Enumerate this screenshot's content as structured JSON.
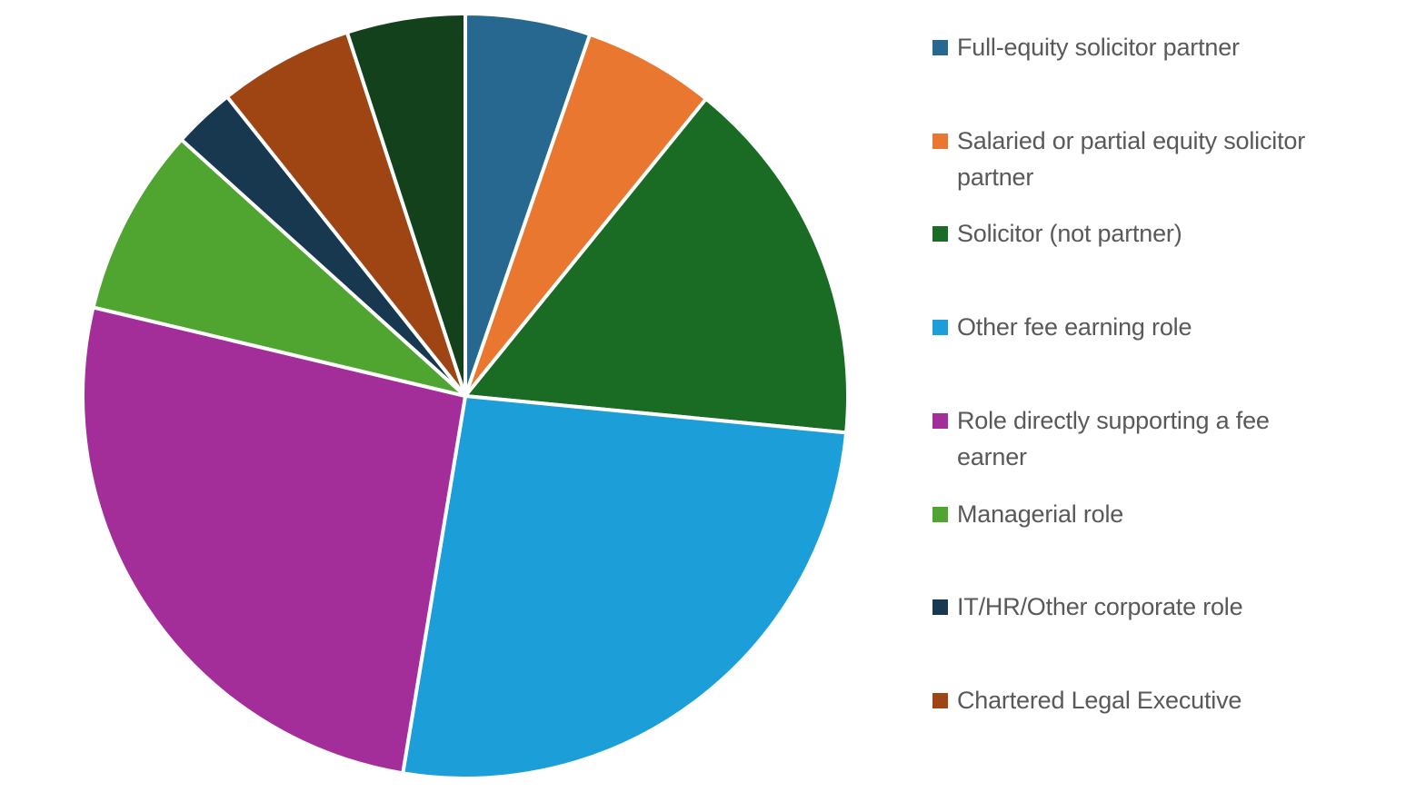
{
  "chart_data": {
    "type": "pie",
    "title": "",
    "legend_position": "right",
    "background": "#FFFFFF",
    "legend_text_color": "#595959",
    "slice_border_color": "#FFFFFF",
    "slices": [
      {
        "label": "Full-equity solicitor partner",
        "color": "#26688F",
        "start_deg": 0,
        "end_deg": 19,
        "percent_est": 5.3,
        "legend_visible": true
      },
      {
        "label": "Salaried or partial equity solicitor partner",
        "color": "#E9772F",
        "start_deg": 19,
        "end_deg": 39,
        "percent_est": 5.6,
        "legend_visible": true
      },
      {
        "label": "Solicitor (not partner)",
        "color": "#1A6B23",
        "start_deg": 39,
        "end_deg": 95.5,
        "percent_est": 15.7,
        "legend_visible": true
      },
      {
        "label": "Other fee earning role",
        "color": "#1C9ED9",
        "start_deg": 95.5,
        "end_deg": 189.4,
        "percent_est": 26.1,
        "legend_visible": true
      },
      {
        "label": "Role directly supporting a fee earner",
        "color": "#A32E99",
        "start_deg": 189.4,
        "end_deg": 283.4,
        "percent_est": 26.1,
        "legend_visible": true
      },
      {
        "label": "Managerial role",
        "color": "#4FA52F",
        "start_deg": 283.4,
        "end_deg": 312.1,
        "percent_est": 8.0,
        "legend_visible": true
      },
      {
        "label": "IT/HR/Other corporate role",
        "color": "#17384E",
        "start_deg": 312.1,
        "end_deg": 321.5,
        "percent_est": 2.6,
        "legend_visible": true
      },
      {
        "label": "Chartered Legal Executive",
        "color": "#9E4513",
        "start_deg": 321.5,
        "end_deg": 342,
        "percent_est": 5.7,
        "legend_visible": true
      },
      {
        "label": "",
        "color": "#12411B",
        "start_deg": 342,
        "end_deg": 360,
        "percent_est": 5.0,
        "legend_visible": false
      }
    ]
  }
}
